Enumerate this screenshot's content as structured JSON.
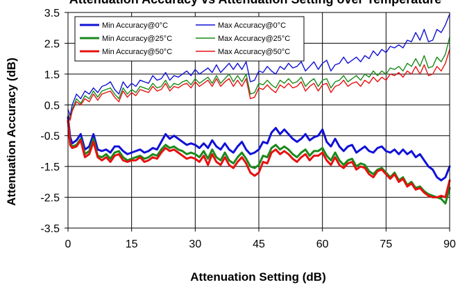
{
  "chart_data": {
    "type": "line",
    "title": "Attenuation Accuracy vs Attenuation Setting over Temperature",
    "xlabel": "Attenuation Setting (dB)",
    "ylabel": "Attenuation Accuracy (dB)",
    "xlim": [
      0,
      90
    ],
    "ylim": [
      -3.5,
      3.5
    ],
    "xticks": [
      0,
      15,
      30,
      45,
      60,
      75,
      90
    ],
    "xtick_labels": [
      "0",
      "15",
      "30",
      "45",
      "60",
      "75",
      "90"
    ],
    "yticks": [
      3.5,
      2.5,
      1.5,
      0.5,
      -0.5,
      -1.5,
      -2.5,
      -3.5
    ],
    "ytick_labels": [
      "3.5",
      "2.5",
      "1.5",
      "0.5",
      "-0.5",
      "-1.5",
      "-2.5",
      "-3.5"
    ],
    "grid": true,
    "legend_position": "top-left inside",
    "x": [
      0,
      0.5,
      1,
      2,
      3,
      4,
      5,
      6,
      7,
      8,
      9,
      10,
      11,
      12,
      13,
      14,
      15,
      16,
      17,
      18,
      19,
      20,
      21,
      22,
      23,
      24,
      25,
      26,
      27,
      28,
      29,
      30,
      31,
      32,
      33,
      34,
      35,
      36,
      37,
      38,
      39,
      40,
      41,
      42,
      43,
      44,
      45,
      46,
      47,
      48,
      49,
      50,
      51,
      52,
      53,
      54,
      55,
      56,
      57,
      58,
      59,
      60,
      61,
      62,
      63,
      64,
      65,
      66,
      67,
      68,
      69,
      70,
      71,
      72,
      73,
      74,
      75,
      76,
      77,
      78,
      79,
      80,
      81,
      82,
      83,
      84,
      85,
      86,
      87,
      88,
      89,
      90
    ],
    "series": [
      {
        "name": "Min Accuracy@0°C",
        "color": "#1010d8",
        "stroke": "thick",
        "values": [
          0.1,
          -0.55,
          -0.75,
          -0.65,
          -0.45,
          -0.95,
          -0.85,
          -0.45,
          -0.95,
          -1.0,
          -0.95,
          -1.05,
          -0.85,
          -0.85,
          -1.0,
          -1.1,
          -1.05,
          -1.0,
          -0.95,
          -1.05,
          -1.0,
          -0.9,
          -0.95,
          -0.7,
          -0.45,
          -0.6,
          -0.5,
          -0.6,
          -0.7,
          -0.8,
          -0.75,
          -0.8,
          -0.9,
          -0.75,
          -0.9,
          -0.65,
          -0.85,
          -0.95,
          -0.75,
          -0.95,
          -1.05,
          -0.85,
          -0.7,
          -0.95,
          -1.1,
          -1.05,
          -0.95,
          -0.7,
          -0.75,
          -0.4,
          -0.25,
          -0.45,
          -0.3,
          -0.45,
          -0.6,
          -0.7,
          -0.6,
          -0.45,
          -0.65,
          -0.55,
          -0.5,
          -0.3,
          -0.7,
          -0.85,
          -0.6,
          -0.85,
          -1.0,
          -0.85,
          -0.8,
          -1.05,
          -0.95,
          -0.85,
          -1.0,
          -1.05,
          -0.9,
          -0.85,
          -1.0,
          -1.05,
          -0.95,
          -1.1,
          -0.95,
          -1.1,
          -1.0,
          -1.2,
          -1.1,
          -1.3,
          -1.5,
          -1.6,
          -1.85,
          -1.95,
          -1.85,
          -1.5
        ]
      },
      {
        "name": "Max Accuracy@0°C",
        "color": "#1010d8",
        "stroke": "thin",
        "values": [
          0.35,
          0.15,
          0.5,
          0.85,
          0.7,
          0.95,
          0.85,
          1.05,
          0.9,
          1.1,
          1.15,
          1.25,
          1.0,
          0.85,
          1.25,
          1.05,
          1.2,
          1.1,
          1.3,
          1.25,
          1.2,
          1.45,
          1.3,
          1.35,
          1.55,
          1.3,
          1.45,
          1.4,
          1.5,
          1.6,
          1.45,
          1.65,
          1.5,
          1.6,
          1.7,
          1.55,
          1.8,
          1.55,
          1.7,
          1.85,
          1.65,
          1.85,
          1.65,
          1.9,
          1.25,
          1.3,
          1.6,
          1.55,
          1.75,
          1.6,
          1.5,
          1.75,
          1.65,
          1.85,
          1.7,
          1.75,
          1.9,
          1.6,
          1.75,
          1.9,
          1.65,
          1.85,
          1.95,
          1.6,
          1.8,
          1.85,
          2.05,
          1.85,
          1.95,
          2.05,
          1.9,
          2.1,
          2.0,
          2.25,
          2.1,
          2.3,
          2.2,
          2.4,
          2.35,
          2.45,
          2.35,
          2.6,
          2.55,
          2.85,
          2.6,
          2.95,
          2.55,
          2.6,
          2.95,
          2.85,
          3.1,
          3.45
        ]
      },
      {
        "name": "Min Accuracy@25°C",
        "color": "#1a8a1a",
        "stroke": "thick",
        "values": [
          0.0,
          -0.75,
          -0.85,
          -0.8,
          -0.6,
          -1.1,
          -1.0,
          -0.6,
          -1.15,
          -1.2,
          -1.1,
          -1.25,
          -1.05,
          -1.0,
          -1.2,
          -1.3,
          -1.25,
          -1.2,
          -1.15,
          -1.25,
          -1.2,
          -1.1,
          -1.15,
          -0.95,
          -0.8,
          -0.9,
          -0.85,
          -0.95,
          -1.0,
          -1.1,
          -1.05,
          -1.1,
          -1.2,
          -1.0,
          -1.25,
          -0.95,
          -1.2,
          -1.3,
          -1.05,
          -1.3,
          -1.4,
          -1.2,
          -1.05,
          -1.25,
          -1.5,
          -1.55,
          -1.45,
          -1.15,
          -1.2,
          -0.9,
          -0.8,
          -0.95,
          -0.85,
          -0.95,
          -1.1,
          -1.2,
          -1.05,
          -0.95,
          -1.15,
          -1.0,
          -1.0,
          -0.9,
          -1.15,
          -1.3,
          -1.05,
          -1.3,
          -1.45,
          -1.3,
          -1.25,
          -1.5,
          -1.4,
          -1.45,
          -1.65,
          -1.75,
          -1.6,
          -1.55,
          -1.7,
          -1.85,
          -1.7,
          -1.95,
          -1.85,
          -2.1,
          -2.0,
          -2.2,
          -2.15,
          -2.3,
          -2.4,
          -2.45,
          -2.5,
          -2.55,
          -2.7,
          -2.2
        ]
      },
      {
        "name": "Max Accuracy@25°C",
        "color": "#1a8a1a",
        "stroke": "thin",
        "values": [
          0.2,
          0.05,
          0.35,
          0.7,
          0.55,
          0.8,
          0.7,
          0.95,
          0.75,
          0.95,
          1.0,
          1.05,
          0.85,
          0.7,
          1.05,
          0.85,
          1.0,
          0.9,
          1.1,
          1.05,
          1.0,
          1.2,
          1.05,
          1.1,
          1.3,
          1.05,
          1.2,
          1.15,
          1.25,
          1.3,
          1.15,
          1.35,
          1.2,
          1.3,
          1.4,
          1.2,
          1.45,
          1.2,
          1.35,
          1.5,
          1.25,
          1.45,
          1.25,
          1.5,
          0.85,
          0.9,
          1.2,
          1.15,
          1.3,
          1.15,
          1.05,
          1.3,
          1.2,
          1.35,
          1.2,
          1.25,
          1.4,
          1.1,
          1.25,
          1.35,
          1.1,
          1.3,
          1.35,
          1.05,
          1.25,
          1.3,
          1.45,
          1.25,
          1.35,
          1.45,
          1.3,
          1.5,
          1.4,
          1.6,
          1.45,
          1.6,
          1.5,
          1.7,
          1.65,
          1.75,
          1.6,
          1.85,
          1.75,
          2.0,
          1.75,
          2.1,
          1.7,
          1.75,
          2.05,
          1.9,
          2.15,
          2.7
        ]
      },
      {
        "name": "Min Accuracy@50°C",
        "color": "#e81010",
        "stroke": "thick",
        "values": [
          0.0,
          -0.8,
          -0.9,
          -0.85,
          -0.65,
          -1.2,
          -1.1,
          -0.7,
          -1.2,
          -1.3,
          -1.2,
          -1.35,
          -1.15,
          -1.1,
          -1.3,
          -1.35,
          -1.3,
          -1.3,
          -1.2,
          -1.35,
          -1.3,
          -1.2,
          -1.25,
          -1.05,
          -0.9,
          -1.0,
          -0.95,
          -1.05,
          -1.15,
          -1.25,
          -1.2,
          -1.25,
          -1.35,
          -1.15,
          -1.45,
          -1.1,
          -1.35,
          -1.45,
          -1.2,
          -1.45,
          -1.55,
          -1.35,
          -1.2,
          -1.4,
          -1.7,
          -1.8,
          -1.7,
          -1.35,
          -1.4,
          -1.05,
          -0.95,
          -1.1,
          -1.0,
          -1.1,
          -1.25,
          -1.35,
          -1.2,
          -1.1,
          -1.3,
          -1.15,
          -1.15,
          -1.05,
          -1.3,
          -1.45,
          -1.2,
          -1.45,
          -1.55,
          -1.4,
          -1.35,
          -1.6,
          -1.5,
          -1.55,
          -1.75,
          -1.85,
          -1.65,
          -1.6,
          -1.75,
          -1.9,
          -1.75,
          -2.0,
          -1.9,
          -2.15,
          -2.05,
          -2.25,
          -2.2,
          -2.35,
          -2.45,
          -2.5,
          -2.5,
          -2.45,
          -2.5,
          -1.95
        ]
      },
      {
        "name": "Max Accuracy@50°C",
        "color": "#e81010",
        "stroke": "thin",
        "values": [
          0.15,
          0.0,
          0.3,
          0.6,
          0.5,
          0.7,
          0.6,
          0.85,
          0.65,
          0.85,
          0.9,
          0.95,
          0.75,
          0.6,
          0.95,
          0.75,
          0.9,
          0.8,
          1.0,
          0.95,
          0.9,
          1.1,
          0.95,
          1.0,
          1.2,
          0.95,
          1.1,
          1.05,
          1.15,
          1.2,
          1.05,
          1.25,
          1.1,
          1.2,
          1.3,
          1.1,
          1.35,
          1.1,
          1.25,
          1.35,
          1.1,
          1.3,
          1.1,
          1.35,
          0.7,
          0.75,
          1.05,
          1.0,
          1.15,
          1.0,
          0.9,
          1.15,
          1.05,
          1.2,
          1.05,
          1.1,
          1.25,
          0.95,
          1.1,
          1.2,
          0.95,
          1.15,
          1.2,
          0.9,
          1.1,
          1.15,
          1.3,
          1.1,
          1.2,
          1.25,
          1.1,
          1.3,
          1.2,
          1.4,
          1.25,
          1.4,
          1.3,
          1.5,
          1.45,
          1.55,
          1.4,
          1.6,
          1.5,
          1.75,
          1.5,
          1.8,
          1.45,
          1.5,
          1.75,
          1.6,
          1.85,
          2.3
        ]
      }
    ]
  }
}
